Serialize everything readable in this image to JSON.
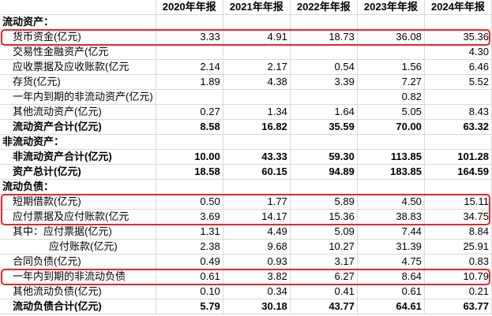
{
  "header": {
    "corner": "",
    "years": [
      "2020年年报",
      "2021年年报",
      "2022年年报",
      "2023年年报",
      "2024年年报"
    ]
  },
  "rows": [
    {
      "label": "流动资产：",
      "values": [
        "",
        "",
        "",
        "",
        ""
      ],
      "bold": true,
      "indent": 0
    },
    {
      "label": "货币资金(亿元)",
      "values": [
        "3.33",
        "4.91",
        "18.73",
        "36.08",
        "35.36"
      ],
      "bold": false,
      "indent": 1,
      "highlight": true
    },
    {
      "label": "交易性金融资产(亿元",
      "values": [
        "",
        "",
        "",
        "",
        "4.30"
      ],
      "bold": false,
      "indent": 2
    },
    {
      "label": "应收票据及应收账款(亿元",
      "values": [
        "2.14",
        "2.17",
        "0.54",
        "1.56",
        "6.46"
      ],
      "bold": false,
      "indent": 1
    },
    {
      "label": "存货(亿元)",
      "values": [
        "1.89",
        "4.38",
        "3.39",
        "7.27",
        "5.52"
      ],
      "bold": false,
      "indent": 1
    },
    {
      "label": "一年内到期的非流动资产(亿元)",
      "values": [
        "",
        "",
        "",
        "0.82",
        ""
      ],
      "bold": false,
      "indent": 1
    },
    {
      "label": "其他流动资产(亿元)",
      "values": [
        "0.27",
        "1.34",
        "1.64",
        "5.05",
        "8.43"
      ],
      "bold": false,
      "indent": 1
    },
    {
      "label": "流动资产合计(亿元)",
      "values": [
        "8.58",
        "16.82",
        "35.59",
        "70.00",
        "63.32"
      ],
      "bold": true,
      "indent": 1
    },
    {
      "label": "非流动资产：",
      "values": [
        "",
        "",
        "",
        "",
        ""
      ],
      "bold": true,
      "indent": 0
    },
    {
      "label": "非流动资产合计(亿元)",
      "values": [
        "10.00",
        "43.33",
        "59.30",
        "113.85",
        "101.28"
      ],
      "bold": true,
      "indent": 1
    },
    {
      "label": "资产总计(亿元)",
      "values": [
        "18.58",
        "60.15",
        "94.89",
        "183.85",
        "164.59"
      ],
      "bold": true,
      "indent": 1
    },
    {
      "label": "流动负债：",
      "values": [
        "",
        "",
        "",
        "",
        ""
      ],
      "bold": true,
      "indent": 0
    },
    {
      "label": "短期借款(亿元)",
      "values": [
        "0.50",
        "1.77",
        "5.89",
        "4.50",
        "15.11"
      ],
      "bold": false,
      "indent": 1,
      "highlight": true
    },
    {
      "label": "应付票据及应付账款(亿元",
      "values": [
        "3.69",
        "14.17",
        "15.36",
        "38.83",
        "34.75"
      ],
      "bold": false,
      "indent": 1,
      "highlight": true
    },
    {
      "label": "其中：应付票据(亿元)",
      "values": [
        "1.31",
        "4.49",
        "5.09",
        "7.44",
        "8.84"
      ],
      "bold": false,
      "indent": 1
    },
    {
      "label": "应付账款(亿元)",
      "values": [
        "2.38",
        "9.68",
        "10.27",
        "31.39",
        "25.91"
      ],
      "bold": false,
      "indent": 3
    },
    {
      "label": "合同负债(亿元)",
      "values": [
        "0.49",
        "0.93",
        "3.17",
        "4.75",
        "0.83"
      ],
      "bold": false,
      "indent": 1
    },
    {
      "label": "一年内到期的非流动负债",
      "values": [
        "0.61",
        "3.82",
        "6.27",
        "8.64",
        "10.79"
      ],
      "bold": false,
      "indent": 1,
      "highlight": true
    },
    {
      "label": "其他流动负债(亿元)",
      "values": [
        "0.10",
        "0.34",
        "0.41",
        "0.61",
        "0.21"
      ],
      "bold": false,
      "indent": 1
    },
    {
      "label": "流动负债合计(亿元)",
      "values": [
        "5.79",
        "30.18",
        "43.77",
        "64.61",
        "63.77"
      ],
      "bold": true,
      "indent": 1
    }
  ],
  "highlight_color": "#e8252b"
}
